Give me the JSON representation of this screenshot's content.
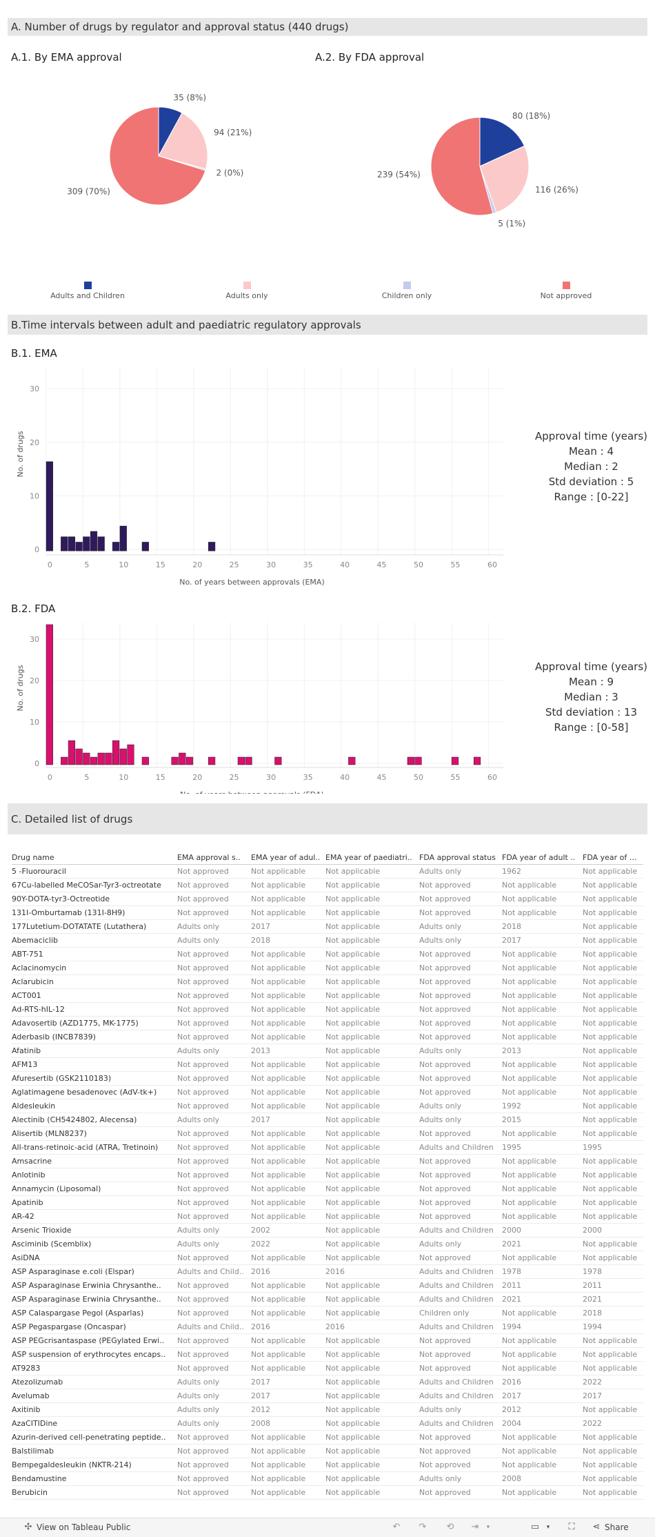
{
  "sections": {
    "a_title": "A. Number of drugs by regulator and approval status (440 drugs)",
    "a1_title": "A.1. By EMA approval",
    "a2_title": "A.2. By FDA approval",
    "b_title": "B.Time intervals between adult and paediatric regulatory approvals",
    "b1_title": "B.1. EMA",
    "b2_title": "B.2. FDA",
    "c_title": "C. Detailed list of drugs"
  },
  "colors": {
    "adults_and_children": "#1f3f9c",
    "adults_only": "#fbc9c9",
    "children_only": "#c5cbeb",
    "not_approved": "#f07474",
    "ema_bar": "#2e1a5c",
    "fda_bar": "#d9106e"
  },
  "legend": [
    {
      "label": "Adults and Children",
      "color": "#1f3f9c"
    },
    {
      "label": "Adults only",
      "color": "#fbc9c9"
    },
    {
      "label": "Children only",
      "color": "#c5cbeb"
    },
    {
      "label": "Not approved",
      "color": "#f07474"
    }
  ],
  "stats": {
    "ema": {
      "title": "Approval time (years)",
      "mean": "Mean : 4",
      "median": "Median : 2",
      "std": "Std deviation : 5",
      "range": "Range : [0-22]"
    },
    "fda": {
      "title": "Approval time (years)",
      "mean": "Mean : 9",
      "median": "Median : 3",
      "std": "Std deviation : 13",
      "range": "Range : [0-58]"
    }
  },
  "chart_data": [
    {
      "type": "pie",
      "id": "ema_pie",
      "title": "A.1. By EMA approval",
      "slices": [
        {
          "name": "Adults and Children",
          "value": 35,
          "label": "35 (8%)"
        },
        {
          "name": "Adults only",
          "value": 94,
          "label": "94 (21%)"
        },
        {
          "name": "Children only",
          "value": 2,
          "label": "2 (0%)"
        },
        {
          "name": "Not approved",
          "value": 309,
          "label": "309 (70%)"
        }
      ]
    },
    {
      "type": "pie",
      "id": "fda_pie",
      "title": "A.2. By FDA approval",
      "slices": [
        {
          "name": "Adults and Children",
          "value": 80,
          "label": "80 (18%)"
        },
        {
          "name": "Adults only",
          "value": 116,
          "label": "116 (26%)"
        },
        {
          "name": "Children only",
          "value": 5,
          "label": "5 (1%)"
        },
        {
          "name": "Not approved",
          "value": 239,
          "label": "239 (54%)"
        }
      ]
    },
    {
      "type": "bar",
      "id": "ema_hist",
      "title": "B.1. EMA",
      "xlabel": "No. of years between approvals (EMA)",
      "ylabel": "No. of drugs",
      "xlim": [
        0,
        62
      ],
      "ylim": [
        -1,
        34
      ],
      "xticks": [
        0,
        5,
        10,
        15,
        20,
        25,
        30,
        35,
        40,
        45,
        50,
        55,
        60
      ],
      "yticks": [
        0,
        10,
        20,
        30
      ],
      "x": [
        0,
        2,
        3,
        4,
        5,
        6,
        7,
        9,
        10,
        13,
        22
      ],
      "values": [
        16,
        2,
        2,
        1,
        2,
        3,
        2,
        1,
        4,
        1,
        1
      ]
    },
    {
      "type": "bar",
      "id": "fda_hist",
      "title": "B.2. FDA",
      "xlabel": "No. of years between approvals (FDA)",
      "ylabel": "No. of drugs",
      "xlim": [
        0,
        62
      ],
      "ylim": [
        -1,
        34
      ],
      "xticks": [
        0,
        5,
        10,
        15,
        20,
        25,
        30,
        35,
        40,
        45,
        50,
        55,
        60
      ],
      "yticks": [
        0,
        10,
        20,
        30
      ],
      "x": [
        0,
        2,
        3,
        4,
        5,
        6,
        7,
        8,
        9,
        10,
        11,
        13,
        17,
        18,
        19,
        22,
        26,
        27,
        31,
        41,
        49,
        50,
        55,
        58
      ],
      "values": [
        33,
        1,
        5,
        3,
        2,
        1,
        2,
        2,
        5,
        3,
        4,
        1,
        1,
        2,
        1,
        1,
        1,
        1,
        1,
        1,
        1,
        1,
        1,
        1
      ]
    }
  ],
  "table": {
    "headers": [
      "Drug name",
      "EMA approval s..",
      "EMA year of adul..",
      "EMA year of paediatri..",
      "FDA approval status",
      "FDA year of adult ..",
      "FDA year of paed"
    ],
    "rows": [
      [
        "5 -Fluorouracil",
        "Not approved",
        "Not applicable",
        "Not applicable",
        "Adults only",
        "1962",
        "Not applicable"
      ],
      [
        "67Cu-labelled MeCOSar-Tyr3-octreotate",
        "Not approved",
        "Not applicable",
        "Not applicable",
        "Not approved",
        "Not applicable",
        "Not applicable"
      ],
      [
        "90Y-DOTA-tyr3-Octreotide",
        "Not approved",
        "Not applicable",
        "Not applicable",
        "Not approved",
        "Not applicable",
        "Not applicable"
      ],
      [
        "131I-Omburtamab (131I-8H9)",
        "Not approved",
        "Not applicable",
        "Not applicable",
        "Not approved",
        "Not applicable",
        "Not applicable"
      ],
      [
        "177Lutetium-DOTATATE (Lutathera)",
        "Adults only",
        "2017",
        "Not applicable",
        "Adults only",
        "2018",
        "Not applicable"
      ],
      [
        "Abemaciclib",
        "Adults only",
        "2018",
        "Not applicable",
        "Adults only",
        "2017",
        "Not applicable"
      ],
      [
        "ABT-751",
        "Not approved",
        "Not applicable",
        "Not applicable",
        "Not approved",
        "Not applicable",
        "Not applicable"
      ],
      [
        "Aclacinomycin",
        "Not approved",
        "Not applicable",
        "Not applicable",
        "Not approved",
        "Not applicable",
        "Not applicable"
      ],
      [
        "Aclarubicin",
        "Not approved",
        "Not applicable",
        "Not applicable",
        "Not approved",
        "Not applicable",
        "Not applicable"
      ],
      [
        "ACT001",
        "Not approved",
        "Not applicable",
        "Not applicable",
        "Not approved",
        "Not applicable",
        "Not applicable"
      ],
      [
        "Ad-RTS-hIL-12",
        "Not approved",
        "Not applicable",
        "Not applicable",
        "Not approved",
        "Not applicable",
        "Not applicable"
      ],
      [
        "Adavosertib (AZD1775, MK-1775)",
        "Not approved",
        "Not applicable",
        "Not applicable",
        "Not approved",
        "Not applicable",
        "Not applicable"
      ],
      [
        "Aderbasib (INCB7839)",
        "Not approved",
        "Not applicable",
        "Not applicable",
        "Not approved",
        "Not applicable",
        "Not applicable"
      ],
      [
        "Afatinib",
        "Adults only",
        "2013",
        "Not applicable",
        "Adults only",
        "2013",
        "Not applicable"
      ],
      [
        "AFM13",
        "Not approved",
        "Not applicable",
        "Not applicable",
        "Not approved",
        "Not applicable",
        "Not applicable"
      ],
      [
        "Afuresertib (GSK2110183)",
        "Not approved",
        "Not applicable",
        "Not applicable",
        "Not approved",
        "Not applicable",
        "Not applicable"
      ],
      [
        "Aglatimagene besadenovec (AdV-tk+)",
        "Not approved",
        "Not applicable",
        "Not applicable",
        "Not approved",
        "Not applicable",
        "Not applicable"
      ],
      [
        "Aldesleukin",
        "Not approved",
        "Not applicable",
        "Not applicable",
        "Adults only",
        "1992",
        "Not applicable"
      ],
      [
        "Alectinib (CH5424802, Alecensa)",
        "Adults only",
        "2017",
        "Not applicable",
        "Adults only",
        "2015",
        "Not applicable"
      ],
      [
        "Alisertib (MLN8237)",
        "Not approved",
        "Not applicable",
        "Not applicable",
        "Not approved",
        "Not applicable",
        "Not applicable"
      ],
      [
        "All-trans-retinoic-acid (ATRA, Tretinoin)",
        "Not approved",
        "Not applicable",
        "Not applicable",
        "Adults and Children",
        "1995",
        "1995"
      ],
      [
        "Amsacrine",
        "Not approved",
        "Not applicable",
        "Not applicable",
        "Not approved",
        "Not applicable",
        "Not applicable"
      ],
      [
        "Anlotinib",
        "Not approved",
        "Not applicable",
        "Not applicable",
        "Not approved",
        "Not applicable",
        "Not applicable"
      ],
      [
        "Annamycin (Liposomal)",
        "Not approved",
        "Not applicable",
        "Not applicable",
        "Not approved",
        "Not applicable",
        "Not applicable"
      ],
      [
        "Apatinib",
        "Not approved",
        "Not applicable",
        "Not applicable",
        "Not approved",
        "Not applicable",
        "Not applicable"
      ],
      [
        "AR-42",
        "Not approved",
        "Not applicable",
        "Not applicable",
        "Not approved",
        "Not applicable",
        "Not applicable"
      ],
      [
        "Arsenic Trioxide",
        "Adults only",
        "2002",
        "Not applicable",
        "Adults and Children",
        "2000",
        "2000"
      ],
      [
        "Asciminib (Scemblix)",
        "Adults only",
        "2022",
        "Not applicable",
        "Adults only",
        "2021",
        "Not applicable"
      ],
      [
        "AsiDNA",
        "Not approved",
        "Not applicable",
        "Not applicable",
        "Not approved",
        "Not applicable",
        "Not applicable"
      ],
      [
        "ASP Asparaginase e.coli (Elspar)",
        "Adults and Child..",
        "2016",
        "2016",
        "Adults and Children",
        "1978",
        "1978"
      ],
      [
        "ASP Asparaginase Erwinia Chrysanthe..",
        "Not approved",
        "Not applicable",
        "Not applicable",
        "Adults and Children",
        "2011",
        "2011"
      ],
      [
        "ASP Asparaginase Erwinia Chrysanthe..",
        "Not approved",
        "Not applicable",
        "Not applicable",
        "Adults and Children",
        "2021",
        "2021"
      ],
      [
        "ASP Calaspargase Pegol (Asparlas)",
        "Not approved",
        "Not applicable",
        "Not applicable",
        "Children only",
        "Not applicable",
        "2018"
      ],
      [
        "ASP Pegaspargase (Oncaspar)",
        "Adults and Child..",
        "2016",
        "2016",
        "Adults and Children",
        "1994",
        "1994"
      ],
      [
        "ASP PEGcrisantaspase (PEGylated Erwi..",
        "Not approved",
        "Not applicable",
        "Not applicable",
        "Not approved",
        "Not applicable",
        "Not applicable"
      ],
      [
        "ASP suspension of erythrocytes encaps..",
        "Not approved",
        "Not applicable",
        "Not applicable",
        "Not approved",
        "Not applicable",
        "Not applicable"
      ],
      [
        "AT9283",
        "Not approved",
        "Not applicable",
        "Not applicable",
        "Not approved",
        "Not applicable",
        "Not applicable"
      ],
      [
        "Atezolizumab",
        "Adults only",
        "2017",
        "Not applicable",
        "Adults and Children",
        "2016",
        "2022"
      ],
      [
        "Avelumab",
        "Adults only",
        "2017",
        "Not applicable",
        "Adults and Children",
        "2017",
        "2017"
      ],
      [
        "Axitinib",
        "Adults only",
        "2012",
        "Not applicable",
        "Adults only",
        "2012",
        "Not applicable"
      ],
      [
        "AzaCITIDine",
        "Adults only",
        "2008",
        "Not applicable",
        "Adults and Children",
        "2004",
        "2022"
      ],
      [
        "Azurin-derived cell-penetrating peptide..",
        "Not approved",
        "Not applicable",
        "Not applicable",
        "Not approved",
        "Not applicable",
        "Not applicable"
      ],
      [
        "Balstilimab",
        "Not approved",
        "Not applicable",
        "Not applicable",
        "Not approved",
        "Not applicable",
        "Not applicable"
      ],
      [
        "Bempegaldesleukin (NKTR-214)",
        "Not approved",
        "Not applicable",
        "Not applicable",
        "Not approved",
        "Not applicable",
        "Not applicable"
      ],
      [
        "Bendamustine",
        "Not approved",
        "Not applicable",
        "Not applicable",
        "Adults only",
        "2008",
        "Not applicable"
      ],
      [
        "Berubicin",
        "Not approved",
        "Not applicable",
        "Not applicable",
        "Not approved",
        "Not applicable",
        "Not applicable"
      ]
    ]
  },
  "toolbar": {
    "view_label": "View on Tableau Public",
    "share_label": "Share"
  }
}
